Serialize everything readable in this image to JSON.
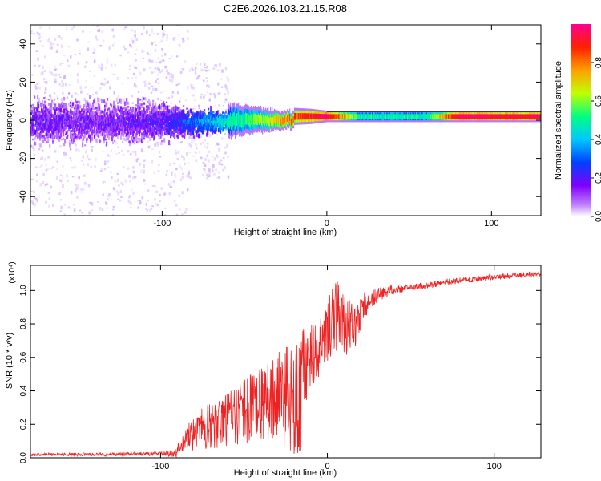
{
  "title": "C2E6.2026.103.21.15.R08",
  "chart_data": [
    {
      "type": "heatmap",
      "name": "spectrogram",
      "xlabel": "Height of straight line (km)",
      "ylabel": "Frequency (Hz)",
      "xlim": [
        -180,
        130
      ],
      "ylim": [
        -50,
        50
      ],
      "xticks": [
        -100,
        0,
        100
      ],
      "xtick_labels": [
        "-100",
        "0",
        "100"
      ],
      "yticks": [
        -40,
        -20,
        0,
        20,
        40
      ],
      "ytick_labels": [
        "-40",
        "-20",
        "0",
        "20",
        "40"
      ],
      "description_series": [
        {
          "name": "band_half_width_hz",
          "x": [
            -180,
            -140,
            -100,
            -85,
            -60,
            -30,
            -10,
            0,
            20,
            60,
            100,
            130
          ],
          "values": [
            22,
            22,
            20,
            14,
            9,
            5,
            4,
            3,
            3,
            3,
            3,
            3
          ]
        },
        {
          "name": "band_center_amplitude",
          "x": [
            -180,
            -140,
            -100,
            -85,
            -60,
            -40,
            -20,
            0,
            20,
            60,
            80,
            100,
            130
          ],
          "values": [
            0.2,
            0.18,
            0.22,
            0.3,
            0.45,
            0.6,
            0.8,
            0.95,
            0.5,
            0.5,
            0.95,
            0.9,
            0.9
          ]
        }
      ],
      "colorbar": {
        "label": "Normalized spectral amplitude",
        "range": [
          0,
          1
        ],
        "ticks": [
          0.0,
          0.2,
          0.4,
          0.6,
          0.8
        ],
        "tick_labels": [
          "0.0",
          "0.2",
          "0.4",
          "0.6",
          "0.8"
        ],
        "colors": [
          "#ffffff",
          "#c080ff",
          "#8000ff",
          "#0040ff",
          "#00c8ff",
          "#00ff80",
          "#c0ff00",
          "#ffa000",
          "#ff2000",
          "#ff0090"
        ]
      }
    },
    {
      "type": "line",
      "name": "snr",
      "xlabel": "Height of straight line (km)",
      "ylabel": "SNR (10 * v/v)",
      "ymultiplier": "(x10⁴)",
      "xlim": [
        -178,
        128
      ],
      "ylim": [
        0.0,
        1.15
      ],
      "xticks": [
        -100,
        0,
        100
      ],
      "xtick_labels": [
        "-100",
        "0",
        "100"
      ],
      "yticks": [
        0.0,
        0.2,
        0.4,
        0.6,
        0.8,
        1.0
      ],
      "ytick_labels": [
        "0.0",
        "0.2",
        "0.4",
        "0.6",
        "0.8",
        "1.0"
      ],
      "color": "#ee2222",
      "series": [
        {
          "name": "SNR baseline",
          "x": [
            -178,
            -130,
            -100,
            -90,
            -85,
            -80,
            -70,
            -60,
            -50,
            -40,
            -30,
            -20,
            -15,
            -10,
            -5,
            0,
            5,
            10,
            15,
            20,
            25,
            30,
            35,
            40,
            50,
            60,
            70,
            80,
            90,
            100,
            110,
            128
          ],
          "values": [
            0.02,
            0.02,
            0.025,
            0.03,
            0.08,
            0.12,
            0.15,
            0.18,
            0.22,
            0.26,
            0.3,
            0.32,
            0.45,
            0.55,
            0.6,
            0.7,
            0.78,
            0.75,
            0.7,
            0.85,
            0.92,
            0.96,
            0.98,
            1.0,
            1.02,
            1.03,
            1.05,
            1.06,
            1.07,
            1.08,
            1.09,
            1.1
          ]
        },
        {
          "name": "SNR spread",
          "x": [
            -178,
            -100,
            -88,
            -80,
            -60,
            -40,
            -25,
            -15,
            -5,
            5,
            15,
            25,
            35,
            50,
            128
          ],
          "values": [
            0.01,
            0.015,
            0.04,
            0.1,
            0.15,
            0.2,
            0.25,
            0.22,
            0.15,
            0.2,
            0.15,
            0.05,
            0.03,
            0.025,
            0.02
          ]
        }
      ]
    }
  ]
}
